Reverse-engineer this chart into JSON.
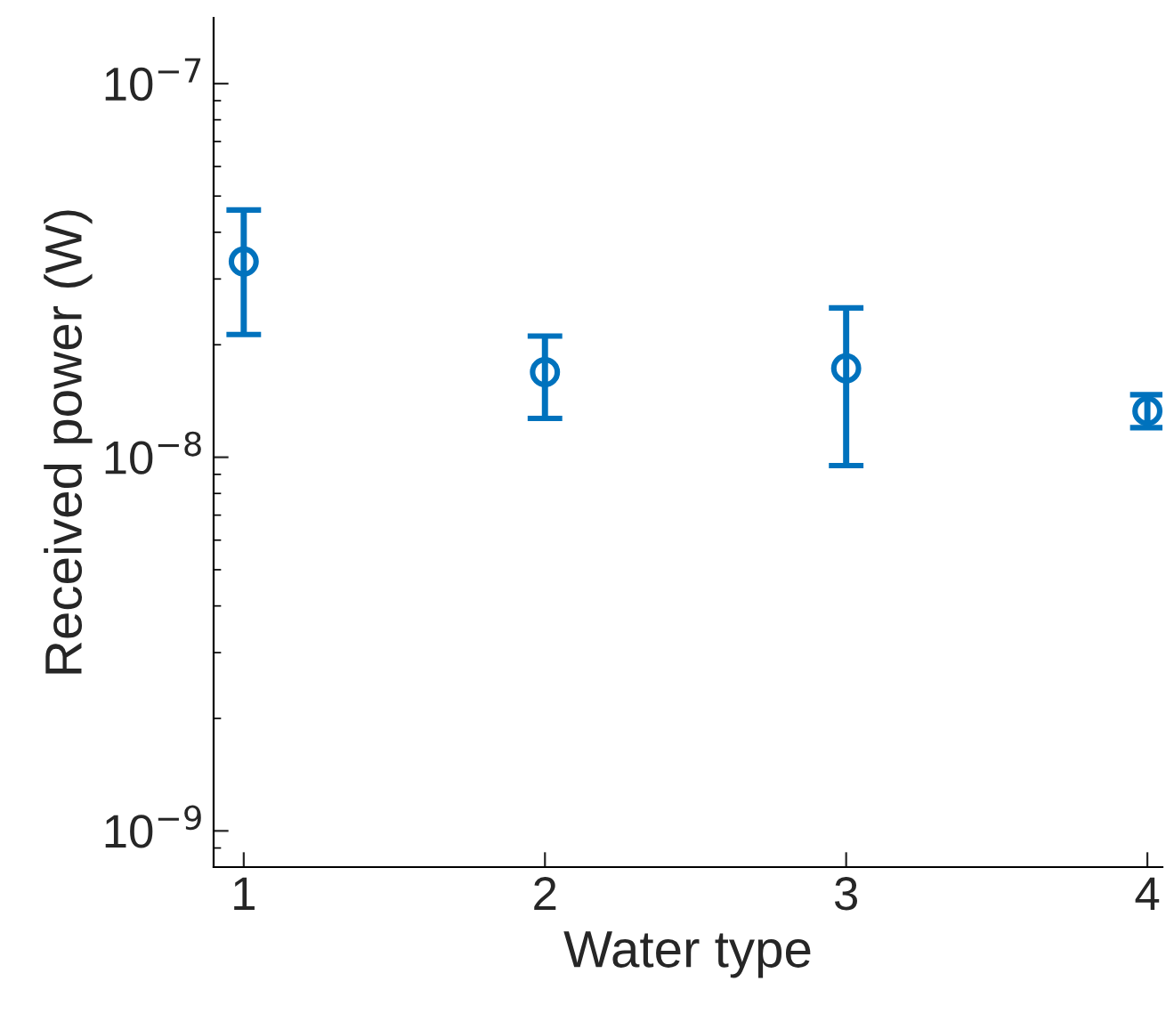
{
  "chart_data": {
    "type": "scatter",
    "xlabel": "Water type",
    "ylabel": "Received power (W)",
    "x": [
      1,
      2,
      3,
      4
    ],
    "series": [
      {
        "color": "#0072bd",
        "values": [
          3.34e-08,
          1.69e-08,
          1.73e-08,
          1.33e-08
        ],
        "errors": [
          [
            2.13e-08,
            4.59e-08
          ],
          [
            1.27e-08,
            2.11e-08
          ],
          [
            9.5e-09,
            2.51e-08
          ],
          [
            1.2e-08,
            1.47e-08
          ]
        ]
      }
    ],
    "log": "y",
    "xlim": [
      0.9,
      4.05
    ],
    "xticks": [
      1,
      2,
      3,
      4
    ],
    "ylim": [
      8e-10,
      1.5e-07
    ],
    "yticks": [
      {
        "value": 1e-09,
        "label": "10$^{−9}$"
      },
      {
        "value": 1e-08,
        "label": "10$^{−8}$"
      },
      {
        "value": 1e-07,
        "label": "10$^{−7}$"
      }
    ],
    "marker": "circle",
    "grid": false,
    "legend": false
  }
}
